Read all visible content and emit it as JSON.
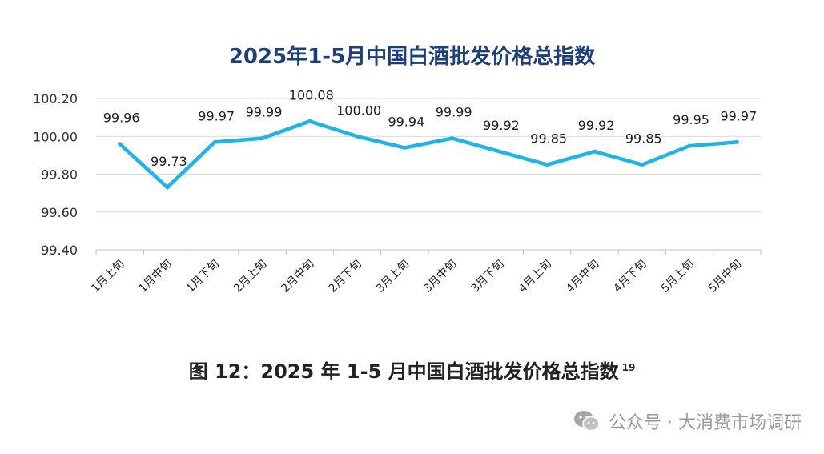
{
  "chart_data": {
    "type": "line",
    "title": "2025年1-5月中国白酒批发价格总指数",
    "xlabel": "",
    "ylabel": "",
    "ylim": [
      99.4,
      100.2
    ],
    "yticks": [
      "99.40",
      "99.60",
      "99.80",
      "100.00",
      "100.20"
    ],
    "categories": [
      "1月上旬",
      "1月中旬",
      "1月下旬",
      "2月上旬",
      "2月中旬",
      "2月下旬",
      "3月上旬",
      "3月中旬",
      "3月下旬",
      "4月上旬",
      "4月中旬",
      "4月下旬",
      "5月上旬",
      "5月中旬"
    ],
    "values": [
      99.96,
      99.73,
      99.97,
      99.99,
      100.08,
      100.0,
      99.94,
      99.99,
      99.92,
      99.85,
      99.92,
      99.85,
      99.95,
      99.97
    ],
    "value_labels": [
      "99.96",
      "99.73",
      "99.97",
      "99.99",
      "100.08",
      "100.00",
      "99.94",
      "99.99",
      "99.92",
      "99.85",
      "99.92",
      "99.85",
      "99.95",
      "99.97"
    ],
    "line_color": "#1fb3e8",
    "grid": true
  },
  "caption": {
    "text": "图 12：2025 年 1-5 月中国白酒批发价格总指数",
    "note": "19"
  },
  "watermark": {
    "text": "公众号 · 大消费市场调研",
    "icon": "wechat-icon"
  }
}
